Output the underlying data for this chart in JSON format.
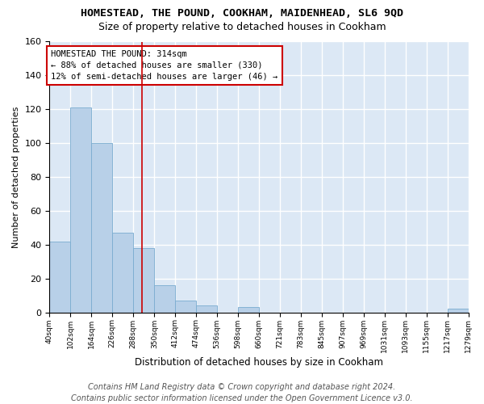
{
  "title": "HOMESTEAD, THE POUND, COOKHAM, MAIDENHEAD, SL6 9QD",
  "subtitle": "Size of property relative to detached houses in Cookham",
  "xlabel": "Distribution of detached houses by size in Cookham",
  "ylabel": "Number of detached properties",
  "fig_background_color": "#ffffff",
  "ax_background_color": "#dce8f5",
  "bar_color": "#b8d0e8",
  "bar_edge_color": "#7aacd0",
  "grid_color": "#ffffff",
  "bin_edges": [
    40,
    102,
    164,
    226,
    288,
    350,
    412,
    474,
    536,
    598,
    660,
    721,
    783,
    845,
    907,
    969,
    1031,
    1093,
    1155,
    1217,
    1279
  ],
  "bin_labels": [
    "40sqm",
    "102sqm",
    "164sqm",
    "226sqm",
    "288sqm",
    "350sqm",
    "412sqm",
    "474sqm",
    "536sqm",
    "598sqm",
    "660sqm",
    "721sqm",
    "783sqm",
    "845sqm",
    "907sqm",
    "969sqm",
    "1031sqm",
    "1093sqm",
    "1155sqm",
    "1217sqm",
    "1279sqm"
  ],
  "bar_heights": [
    42,
    121,
    100,
    47,
    38,
    16,
    7,
    4,
    0,
    3,
    0,
    0,
    0,
    0,
    0,
    0,
    0,
    0,
    0,
    2
  ],
  "property_value": 314,
  "vline_color": "#cc0000",
  "annotation_text": "HOMESTEAD THE POUND: 314sqm\n← 88% of detached houses are smaller (330)\n12% of semi-detached houses are larger (46) →",
  "annotation_box_edgecolor": "#cc0000",
  "ylim": [
    0,
    160
  ],
  "yticks": [
    0,
    20,
    40,
    60,
    80,
    100,
    120,
    140,
    160
  ],
  "footer": "Contains HM Land Registry data © Crown copyright and database right 2024.\nContains public sector information licensed under the Open Government Licence v3.0.",
  "title_fontsize": 9.5,
  "subtitle_fontsize": 9,
  "annotation_fontsize": 7.5,
  "footer_fontsize": 7,
  "ylabel_fontsize": 8,
  "xlabel_fontsize": 8.5
}
